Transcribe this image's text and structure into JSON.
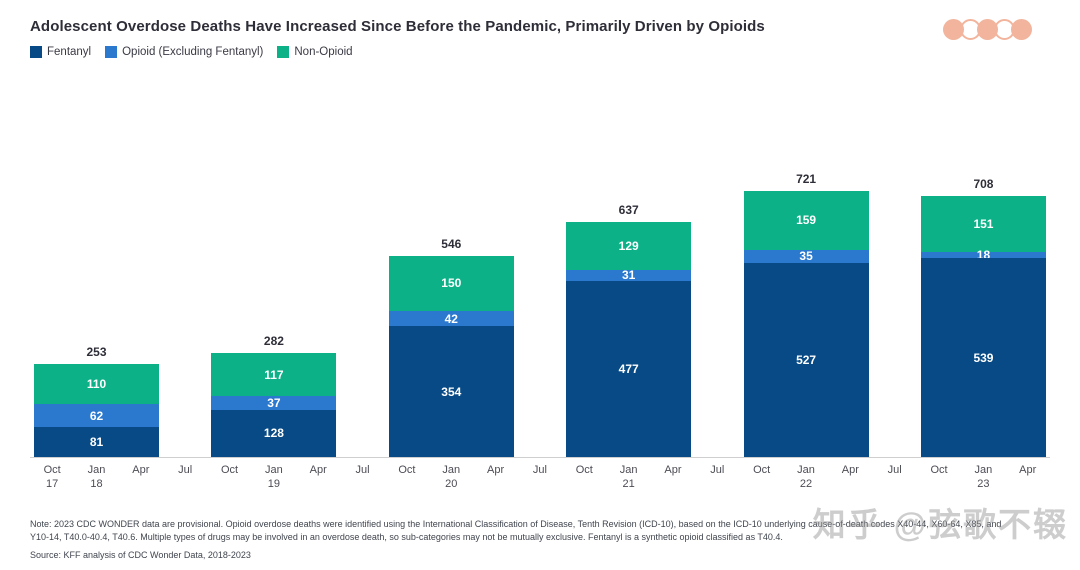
{
  "header": {
    "title": "Adolescent Overdose Deaths Have Increased Since Before the Pandemic, Primarily Driven by Opioids",
    "dots": {
      "pattern": [
        "solid",
        "outline",
        "solid",
        "outline",
        "solid"
      ],
      "color": "#f2b49c"
    }
  },
  "chart_data": {
    "type": "bar",
    "stacked": true,
    "title": "Adolescent Overdose Deaths Have Increased Since Before the Pandemic, Primarily Driven by Opioids",
    "categories": [
      "Oct 17–Apr 18",
      "Oct 18–Apr 19",
      "Oct 19–Apr 20",
      "Oct 20–Apr 21",
      "Oct 21–Apr 22",
      "Oct 22–Apr 23"
    ],
    "series": [
      {
        "name": "Fentanyl",
        "color": "#084a85",
        "values": [
          81,
          128,
          354,
          477,
          527,
          539
        ]
      },
      {
        "name": "Opioid (Excluding Fentanyl)",
        "color": "#2a79cf",
        "values": [
          62,
          37,
          42,
          31,
          35,
          18
        ]
      },
      {
        "name": "Non-Opioid",
        "color": "#0db187",
        "values": [
          110,
          117,
          150,
          129,
          159,
          151
        ]
      }
    ],
    "totals": [
      253,
      282,
      546,
      637,
      721,
      708
    ],
    "x_ticks": [
      {
        "month": "Oct",
        "year": "17"
      },
      {
        "month": "Jan",
        "year": "18"
      },
      {
        "month": "Apr",
        "year": ""
      },
      {
        "month": "Jul",
        "year": ""
      },
      {
        "month": "Oct",
        "year": ""
      },
      {
        "month": "Jan",
        "year": "19"
      },
      {
        "month": "Apr",
        "year": ""
      },
      {
        "month": "Jul",
        "year": ""
      },
      {
        "month": "Oct",
        "year": ""
      },
      {
        "month": "Jan",
        "year": "20"
      },
      {
        "month": "Apr",
        "year": ""
      },
      {
        "month": "Jul",
        "year": ""
      },
      {
        "month": "Oct",
        "year": ""
      },
      {
        "month": "Jan",
        "year": "21"
      },
      {
        "month": "Apr",
        "year": ""
      },
      {
        "month": "Jul",
        "year": ""
      },
      {
        "month": "Oct",
        "year": ""
      },
      {
        "month": "Jan",
        "year": "22"
      },
      {
        "month": "Apr",
        "year": ""
      },
      {
        "month": "Jul",
        "year": ""
      },
      {
        "month": "Oct",
        "year": ""
      },
      {
        "month": "Jan",
        "year": "23"
      },
      {
        "month": "Apr",
        "year": ""
      }
    ],
    "ticks_per_bar": 3,
    "gap_ticks_between_bars": 1,
    "xlabel": "",
    "ylabel": "",
    "grid": false,
    "legend_position": "top-left",
    "value_labels": "inside-segments-and-total-on-top"
  },
  "footer": {
    "note_line1": "Note: 2023 CDC WONDER data are provisional. Opioid overdose deaths were identified using the International Classification of Disease, Tenth Revision (ICD-10), based on the ICD-10 underlying cause-of-death codes X40-44, X60-64, X85, and",
    "note_line2": "Y10-14, T40.0-40.4, T40.6. Multiple types of drugs may be involved in an overdose death, so sub-categories may not be mutually exclusive. Fentanyl is a synthetic opioid classified as T40.4.",
    "source": "Source: KFF analysis of CDC Wonder Data, 2018-2023"
  },
  "watermark": {
    "text": "知乎 @弦歌不辍"
  }
}
